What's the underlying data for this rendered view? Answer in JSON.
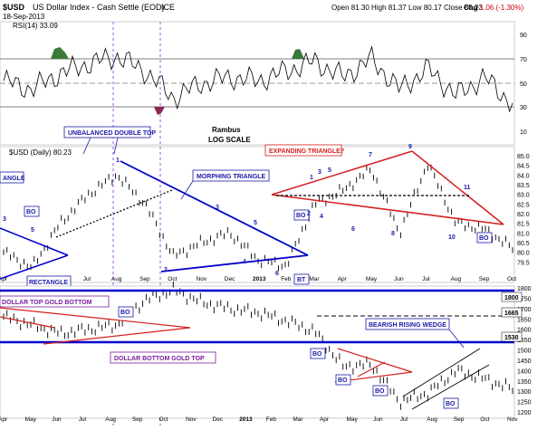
{
  "header": {
    "ticker": "$USD",
    "name": "US Dollar Index - Cash Settle (EOD)",
    "exchange": "ICE",
    "date": "18-Sep-2013",
    "ohlc_text": "Open 81.30  High 81.37  Low 80.17  Close 80.23",
    "chg_label": "Chg",
    "chg_value": "-1.06 (-1.30%)",
    "chg_color": "#cc0000"
  },
  "colors": {
    "annotation_blue": "#1a1aa8",
    "trend_blue": "#0000cc",
    "red_line": "#d62020",
    "purple_box": "#7a1fa0",
    "rsi_overbought": "#3a7a3a",
    "rsi_oversold": "#8a2a4a"
  },
  "rsi_panel": {
    "label": "RSI(14) 33.09",
    "title": "Rambus",
    "subtitle": "LOG SCALE",
    "ticks": [
      "90",
      "70",
      "50",
      "30",
      "10"
    ]
  },
  "chart_data": [
    {
      "type": "line",
      "title": "RSI(14)",
      "ylim": [
        10,
        90
      ],
      "reference_lines": [
        70,
        50,
        30
      ],
      "x": [
        "Apr",
        "May",
        "Jun",
        "Jul",
        "Aug",
        "Sep",
        "Oct",
        "Nov",
        "Dec",
        "2013",
        "Feb",
        "Mar",
        "Apr",
        "May",
        "Jun",
        "Jul",
        "Aug",
        "Sep",
        "Oct"
      ],
      "values": [
        52,
        45,
        58,
        66,
        72,
        60,
        38,
        50,
        55,
        52,
        60,
        68,
        55,
        70,
        45,
        62,
        40,
        55,
        33
      ]
    },
    {
      "type": "line",
      "title": "$USD (Daily) 80.23",
      "ylim": [
        79.0,
        85.0
      ],
      "y_ticks": [
        "85.0",
        "84.5",
        "84.0",
        "83.5",
        "83.0",
        "82.5",
        "82.0",
        "81.5",
        "81.0",
        "80.5",
        "80.0",
        "79.5"
      ],
      "x_ticks": [
        "Apr",
        "May",
        "Jun",
        "Jul",
        "Aug",
        "Sep",
        "Oct",
        "Nov",
        "Dec",
        "2013",
        "Feb",
        "Mar",
        "Apr",
        "May",
        "Jun",
        "Jul",
        "Aug",
        "Sep",
        "Oct"
      ],
      "x": [
        "Apr",
        "May",
        "Jun",
        "Jul",
        "Aug",
        "Sep",
        "Oct",
        "Nov",
        "Dec",
        "2013",
        "Feb",
        "Mar",
        "Apr",
        "May",
        "Jun",
        "Jul",
        "Aug",
        "Sep",
        "Oct"
      ],
      "values": [
        80.0,
        79.2,
        81.5,
        83.0,
        84.0,
        82.5,
        79.8,
        80.5,
        81.0,
        79.6,
        79.3,
        82.5,
        83.2,
        84.3,
        81.0,
        84.6,
        81.5,
        81.2,
        80.2
      ],
      "annotations": [
        {
          "text": "UNBALANCED DOUBLE TOP",
          "color": "#1a1aa8"
        },
        {
          "text": "MORPHING TRIANGLE",
          "color": "#1a1aa8"
        },
        {
          "text": "EXPANDING TRIANGLE?",
          "color": "#d62020"
        },
        {
          "text": "ANGLE",
          "color": "#1a1aa8"
        },
        {
          "text": "RECTANGLE",
          "color": "#1a1aa8"
        },
        {
          "text": "BO",
          "color": "#1a1aa8"
        },
        {
          "text": "BT",
          "color": "#1a1aa8"
        }
      ],
      "wave_counts": [
        "1",
        "2",
        "3",
        "4",
        "5",
        "6",
        "7",
        "8",
        "9",
        "10",
        "11"
      ]
    },
    {
      "type": "line",
      "title": "Gold",
      "ylim": [
        1200,
        1800
      ],
      "y_ticks": [
        "1800",
        "1750",
        "1700",
        "1650",
        "1600",
        "1550",
        "1500",
        "1450",
        "1400",
        "1350",
        "1300",
        "1250",
        "1200"
      ],
      "x_ticks": [
        "Apr",
        "May",
        "Jun",
        "Jul",
        "Aug",
        "Sep",
        "Oct",
        "Nov",
        "Dec",
        "2013",
        "Feb",
        "Mar",
        "Apr",
        "May",
        "Jun",
        "Jul",
        "Aug",
        "Sep",
        "Oct",
        "Nov"
      ],
      "x": [
        "Apr",
        "May",
        "Jun",
        "Jul",
        "Aug",
        "Sep",
        "Oct",
        "Nov",
        "Dec",
        "2013",
        "Feb",
        "Mar",
        "Apr",
        "May",
        "Jun",
        "Jul",
        "Aug",
        "Sep",
        "Oct"
      ],
      "values": [
        1660,
        1620,
        1580,
        1600,
        1620,
        1740,
        1790,
        1730,
        1700,
        1680,
        1640,
        1590,
        1420,
        1430,
        1250,
        1290,
        1400,
        1360,
        1310
      ],
      "horizontal_levels": [
        {
          "value": "1800",
          "label": "1800"
        },
        {
          "value": "1665",
          "label": "1665"
        },
        {
          "value": "1530",
          "label": "1530"
        }
      ],
      "annotations": [
        {
          "text": "DOLLAR TOP GOLD BOTTOM",
          "color": "#7a1fa0"
        },
        {
          "text": "DOLLAR BOTTOM GOLD TOP",
          "color": "#7a1fa0"
        },
        {
          "text": "BEARISH RISING WEDGE",
          "color": "#1a1aa8"
        },
        {
          "text": "BO",
          "color": "#1a1aa8"
        }
      ]
    }
  ],
  "labels": {
    "udt": "UNBALANCED DOUBLE TOP",
    "morph": "MORPHING TRIANGLE",
    "expand": "EXPANDING TRIANGLE?",
    "angle": "ANGLE",
    "rect": "RECTANGLE",
    "dtgb": "DOLLAR TOP GOLD BOTTOM",
    "dbgt": "DOLLAR BOTTOM GOLD TOP",
    "brw": "BEARISH RISING WEDGE",
    "bo": "BO",
    "bt": "BT",
    "usd_label": "$USD (Daily) 80.23"
  }
}
